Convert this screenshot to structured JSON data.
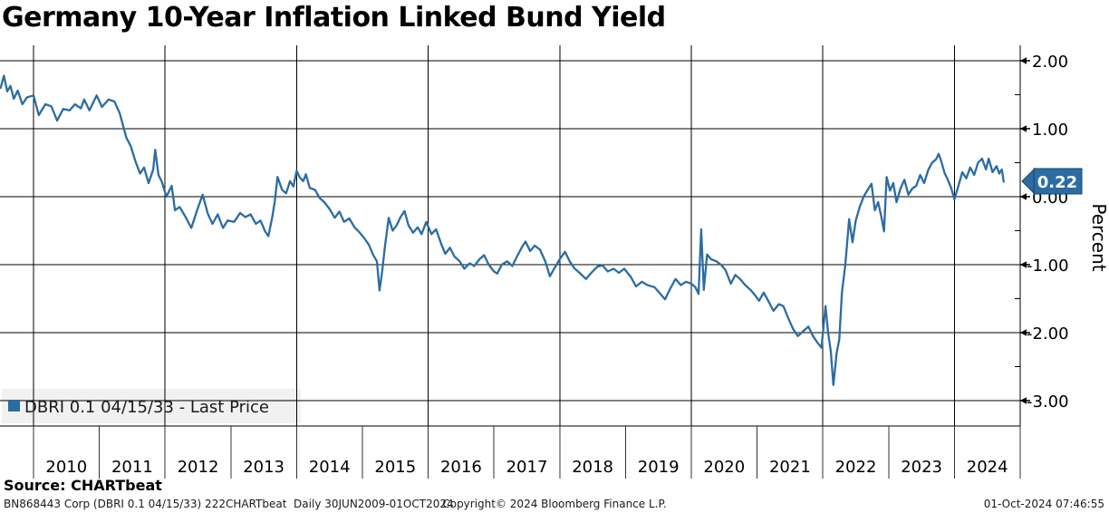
{
  "title": "Germany 10-Year Inflation Linked Bund Yield",
  "legend": {
    "label": "DBRI 0.1 04/15/33 - Last Price",
    "marker_color": "#2b6ca3"
  },
  "source_line": "Source: CHARTbeat",
  "footer": {
    "left": "BN868443 Corp (DBRI 0.1 04/15/33) 222CHARTbeat  Daily 30JUN2009-01OCT2024",
    "center": "Copyright© 2024 Bloomberg Finance L.P.",
    "right": "01-Oct-2024 07:46:55"
  },
  "last_price_badge": {
    "value": "0.22",
    "fill": "#2b6ca3",
    "border": "#17466f",
    "text_color": "#ffffff"
  },
  "chart_data": {
    "type": "line",
    "title": "Germany 10-Year Inflation Linked Bund Yield",
    "series_name": "DBRI 0.1 04/15/33 - Last Price",
    "ylabel": "Percent",
    "xlabel": "",
    "line_color": "#2b6ca3",
    "grid": "major-on-black",
    "legend_position": "bottom-left-inside",
    "x_range_years": [
      2009.5,
      2024.75
    ],
    "ylim": [
      -3.3,
      2.25
    ],
    "last_value": 0.22,
    "x_tick_years": [
      2010,
      2011,
      2012,
      2013,
      2014,
      2015,
      2016,
      2017,
      2018,
      2019,
      2020,
      2021,
      2022,
      2023,
      2024
    ],
    "x_gridline_years": [
      2010,
      2012,
      2014,
      2016,
      2018,
      2020,
      2022,
      2024
    ],
    "y_major_ticks": [
      {
        "label": "2.00",
        "value": 2
      },
      {
        "label": "1.00",
        "value": 1
      },
      {
        "label": "0.00",
        "value": 0
      },
      {
        "label": "-1.00",
        "value": -1
      },
      {
        "label": "-2.00",
        "value": -2
      },
      {
        "label": "-3.00",
        "value": -3
      }
    ],
    "y_minor_ticks": [
      1.5,
      0.5,
      -0.5,
      -1.5,
      -2.5
    ],
    "points": [
      [
        2009.5,
        1.6
      ],
      [
        2009.55,
        1.78
      ],
      [
        2009.6,
        1.55
      ],
      [
        2009.65,
        1.63
      ],
      [
        2009.7,
        1.44
      ],
      [
        2009.76,
        1.56
      ],
      [
        2009.83,
        1.36
      ],
      [
        2009.9,
        1.46
      ],
      [
        2010.0,
        1.49
      ],
      [
        2010.08,
        1.2
      ],
      [
        2010.18,
        1.36
      ],
      [
        2010.27,
        1.33
      ],
      [
        2010.36,
        1.12
      ],
      [
        2010.45,
        1.29
      ],
      [
        2010.55,
        1.27
      ],
      [
        2010.63,
        1.36
      ],
      [
        2010.72,
        1.3
      ],
      [
        2010.77,
        1.43
      ],
      [
        2010.85,
        1.27
      ],
      [
        2010.96,
        1.49
      ],
      [
        2011.04,
        1.32
      ],
      [
        2011.14,
        1.43
      ],
      [
        2011.23,
        1.4
      ],
      [
        2011.31,
        1.23
      ],
      [
        2011.41,
        0.87
      ],
      [
        2011.48,
        0.74
      ],
      [
        2011.55,
        0.52
      ],
      [
        2011.62,
        0.34
      ],
      [
        2011.68,
        0.43
      ],
      [
        2011.75,
        0.2
      ],
      [
        2011.82,
        0.4
      ],
      [
        2011.85,
        0.69
      ],
      [
        2011.9,
        0.32
      ],
      [
        2011.95,
        0.22
      ],
      [
        2012.02,
        0.0
      ],
      [
        2012.1,
        0.16
      ],
      [
        2012.15,
        -0.2
      ],
      [
        2012.22,
        -0.15
      ],
      [
        2012.3,
        -0.28
      ],
      [
        2012.4,
        -0.46
      ],
      [
        2012.48,
        -0.22
      ],
      [
        2012.57,
        0.03
      ],
      [
        2012.65,
        -0.25
      ],
      [
        2012.72,
        -0.4
      ],
      [
        2012.8,
        -0.26
      ],
      [
        2012.88,
        -0.46
      ],
      [
        2012.95,
        -0.35
      ],
      [
        2013.05,
        -0.37
      ],
      [
        2013.14,
        -0.24
      ],
      [
        2013.22,
        -0.3
      ],
      [
        2013.3,
        -0.26
      ],
      [
        2013.38,
        -0.4
      ],
      [
        2013.45,
        -0.35
      ],
      [
        2013.52,
        -0.51
      ],
      [
        2013.57,
        -0.58
      ],
      [
        2013.63,
        -0.3
      ],
      [
        2013.67,
        -0.06
      ],
      [
        2013.71,
        0.29
      ],
      [
        2013.78,
        0.1
      ],
      [
        2013.84,
        0.05
      ],
      [
        2013.9,
        0.23
      ],
      [
        2013.95,
        0.15
      ],
      [
        2014.0,
        0.38
      ],
      [
        2014.05,
        0.28
      ],
      [
        2014.1,
        0.23
      ],
      [
        2014.14,
        0.33
      ],
      [
        2014.2,
        0.13
      ],
      [
        2014.28,
        0.1
      ],
      [
        2014.35,
        -0.02
      ],
      [
        2014.42,
        -0.08
      ],
      [
        2014.5,
        -0.18
      ],
      [
        2014.58,
        -0.31
      ],
      [
        2014.65,
        -0.22
      ],
      [
        2014.72,
        -0.37
      ],
      [
        2014.8,
        -0.32
      ],
      [
        2014.88,
        -0.45
      ],
      [
        2014.95,
        -0.52
      ],
      [
        2015.02,
        -0.6
      ],
      [
        2015.1,
        -0.71
      ],
      [
        2015.16,
        -0.85
      ],
      [
        2015.22,
        -0.95
      ],
      [
        2015.26,
        -1.38
      ],
      [
        2015.3,
        -1.1
      ],
      [
        2015.34,
        -0.75
      ],
      [
        2015.4,
        -0.31
      ],
      [
        2015.46,
        -0.5
      ],
      [
        2015.52,
        -0.42
      ],
      [
        2015.58,
        -0.3
      ],
      [
        2015.64,
        -0.21
      ],
      [
        2015.7,
        -0.42
      ],
      [
        2015.77,
        -0.53
      ],
      [
        2015.84,
        -0.45
      ],
      [
        2015.9,
        -0.55
      ],
      [
        2015.97,
        -0.37
      ],
      [
        2016.05,
        -0.55
      ],
      [
        2016.12,
        -0.48
      ],
      [
        2016.2,
        -0.7
      ],
      [
        2016.26,
        -0.84
      ],
      [
        2016.33,
        -0.75
      ],
      [
        2016.4,
        -0.88
      ],
      [
        2016.48,
        -0.95
      ],
      [
        2016.55,
        -1.06
      ],
      [
        2016.63,
        -0.98
      ],
      [
        2016.7,
        -1.02
      ],
      [
        2016.78,
        -0.92
      ],
      [
        2016.85,
        -0.86
      ],
      [
        2016.92,
        -1.0
      ],
      [
        2017.0,
        -1.1
      ],
      [
        2017.05,
        -1.13
      ],
      [
        2017.12,
        -1.0
      ],
      [
        2017.2,
        -0.95
      ],
      [
        2017.28,
        -1.02
      ],
      [
        2017.35,
        -0.88
      ],
      [
        2017.42,
        -0.75
      ],
      [
        2017.48,
        -0.66
      ],
      [
        2017.55,
        -0.8
      ],
      [
        2017.62,
        -0.72
      ],
      [
        2017.7,
        -0.78
      ],
      [
        2017.78,
        -0.95
      ],
      [
        2017.85,
        -1.17
      ],
      [
        2017.92,
        -1.05
      ],
      [
        2018.0,
        -0.92
      ],
      [
        2018.08,
        -0.81
      ],
      [
        2018.15,
        -0.95
      ],
      [
        2018.22,
        -1.05
      ],
      [
        2018.3,
        -1.12
      ],
      [
        2018.4,
        -1.21
      ],
      [
        2018.48,
        -1.12
      ],
      [
        2018.57,
        -1.03
      ],
      [
        2018.65,
        -1.01
      ],
      [
        2018.73,
        -1.1
      ],
      [
        2018.82,
        -1.06
      ],
      [
        2018.9,
        -1.12
      ],
      [
        2018.98,
        -1.06
      ],
      [
        2019.08,
        -1.18
      ],
      [
        2019.16,
        -1.32
      ],
      [
        2019.25,
        -1.25
      ],
      [
        2019.33,
        -1.3
      ],
      [
        2019.44,
        -1.33
      ],
      [
        2019.52,
        -1.42
      ],
      [
        2019.6,
        -1.51
      ],
      [
        2019.68,
        -1.35
      ],
      [
        2019.76,
        -1.21
      ],
      [
        2019.84,
        -1.3
      ],
      [
        2019.92,
        -1.25
      ],
      [
        2020.0,
        -1.28
      ],
      [
        2020.06,
        -1.33
      ],
      [
        2020.11,
        -1.43
      ],
      [
        2020.15,
        -0.48
      ],
      [
        2020.19,
        -1.37
      ],
      [
        2020.24,
        -0.85
      ],
      [
        2020.3,
        -0.92
      ],
      [
        2020.38,
        -0.95
      ],
      [
        2020.45,
        -1.0
      ],
      [
        2020.52,
        -1.08
      ],
      [
        2020.6,
        -1.28
      ],
      [
        2020.67,
        -1.15
      ],
      [
        2020.74,
        -1.21
      ],
      [
        2020.82,
        -1.3
      ],
      [
        2020.9,
        -1.37
      ],
      [
        2020.97,
        -1.45
      ],
      [
        2021.03,
        -1.53
      ],
      [
        2021.1,
        -1.41
      ],
      [
        2021.18,
        -1.55
      ],
      [
        2021.25,
        -1.68
      ],
      [
        2021.33,
        -1.58
      ],
      [
        2021.4,
        -1.61
      ],
      [
        2021.48,
        -1.8
      ],
      [
        2021.55,
        -1.95
      ],
      [
        2021.62,
        -2.05
      ],
      [
        2021.7,
        -1.98
      ],
      [
        2021.78,
        -1.91
      ],
      [
        2021.85,
        -2.05
      ],
      [
        2021.92,
        -2.15
      ],
      [
        2021.98,
        -2.22
      ],
      [
        2022.04,
        -1.61
      ],
      [
        2022.08,
        -2.0
      ],
      [
        2022.12,
        -2.27
      ],
      [
        2022.16,
        -2.77
      ],
      [
        2022.21,
        -2.3
      ],
      [
        2022.25,
        -2.1
      ],
      [
        2022.29,
        -1.4
      ],
      [
        2022.34,
        -1.01
      ],
      [
        2022.4,
        -0.33
      ],
      [
        2022.45,
        -0.67
      ],
      [
        2022.5,
        -0.35
      ],
      [
        2022.56,
        -0.15
      ],
      [
        2022.62,
        0.0
      ],
      [
        2022.68,
        0.1
      ],
      [
        2022.74,
        0.19
      ],
      [
        2022.79,
        -0.2
      ],
      [
        2022.84,
        -0.08
      ],
      [
        2022.89,
        -0.3
      ],
      [
        2022.93,
        -0.51
      ],
      [
        2022.97,
        0.29
      ],
      [
        2023.02,
        0.09
      ],
      [
        2023.07,
        0.2
      ],
      [
        2023.12,
        -0.08
      ],
      [
        2023.18,
        0.12
      ],
      [
        2023.24,
        0.25
      ],
      [
        2023.3,
        0.03
      ],
      [
        2023.36,
        0.12
      ],
      [
        2023.42,
        0.16
      ],
      [
        2023.48,
        0.32
      ],
      [
        2023.54,
        0.2
      ],
      [
        2023.6,
        0.39
      ],
      [
        2023.66,
        0.5
      ],
      [
        2023.72,
        0.55
      ],
      [
        2023.76,
        0.63
      ],
      [
        2023.8,
        0.52
      ],
      [
        2023.85,
        0.35
      ],
      [
        2023.9,
        0.25
      ],
      [
        2023.95,
        0.13
      ],
      [
        2024.0,
        -0.04
      ],
      [
        2024.06,
        0.16
      ],
      [
        2024.12,
        0.36
      ],
      [
        2024.18,
        0.27
      ],
      [
        2024.24,
        0.43
      ],
      [
        2024.3,
        0.32
      ],
      [
        2024.36,
        0.5
      ],
      [
        2024.42,
        0.56
      ],
      [
        2024.48,
        0.4
      ],
      [
        2024.52,
        0.56
      ],
      [
        2024.58,
        0.36
      ],
      [
        2024.64,
        0.45
      ],
      [
        2024.68,
        0.34
      ],
      [
        2024.72,
        0.4
      ],
      [
        2024.75,
        0.22
      ]
    ]
  }
}
